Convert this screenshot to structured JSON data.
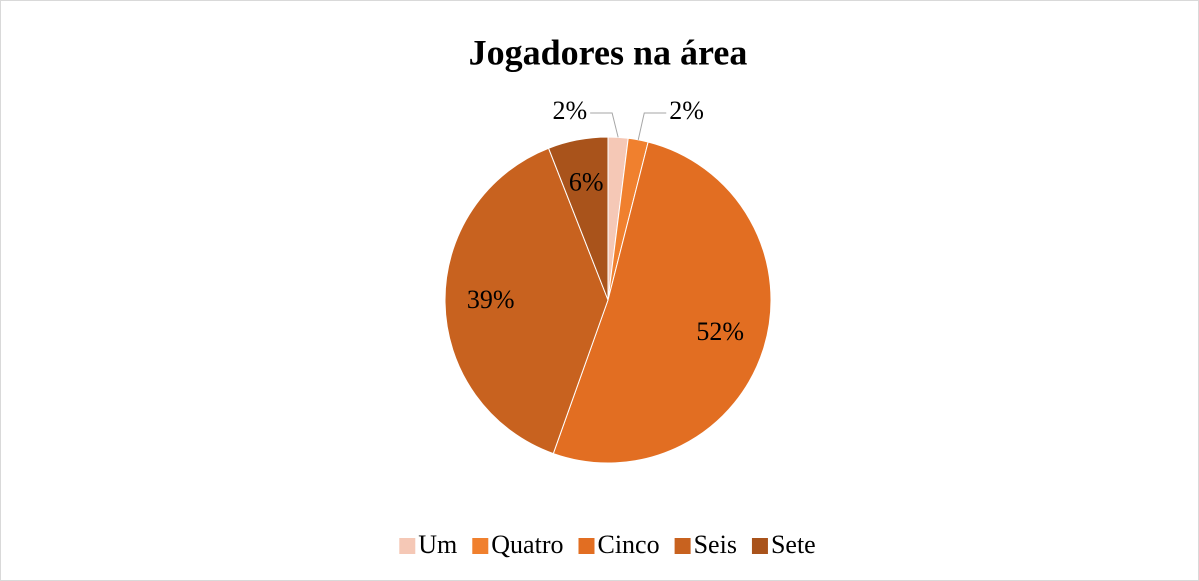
{
  "chart_data": {
    "type": "pie",
    "title": "Jogadores na área",
    "categories": [
      "Um",
      "Quatro",
      "Cinco",
      "Seis",
      "Sete"
    ],
    "values": [
      2,
      2,
      52,
      39,
      6
    ],
    "value_labels": [
      "2%",
      "2%",
      "52%",
      "39%",
      "6%"
    ],
    "colors": [
      "#f5c8b6",
      "#f0802e",
      "#e26e22",
      "#c8621f",
      "#a9531b"
    ],
    "legend": "bottom"
  }
}
